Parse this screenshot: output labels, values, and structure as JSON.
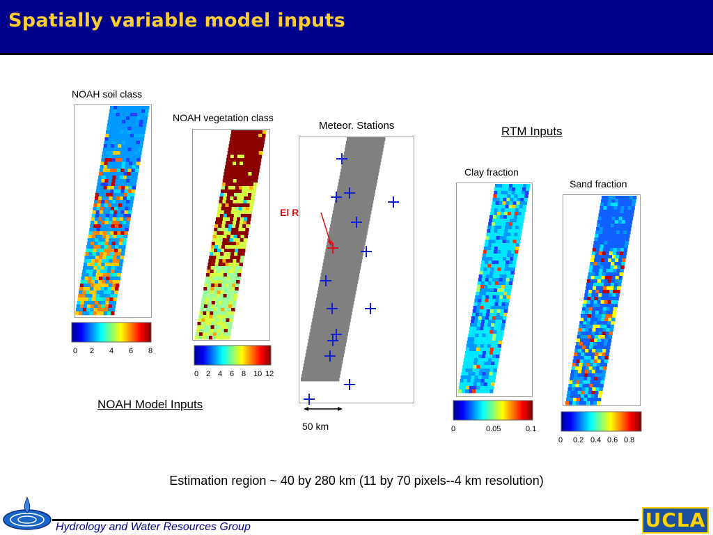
{
  "title": "Spatially variable model inputs",
  "panels": {
    "soil": {
      "label": "NOAH soil class",
      "ticks": [
        "0",
        "2",
        "4",
        "6",
        "8"
      ]
    },
    "veg": {
      "label": "NOAH vegetation class",
      "ticks": [
        "0",
        "2",
        "4",
        "6",
        "8",
        "10",
        "12"
      ]
    },
    "stations": {
      "label": "Meteor. Stations",
      "station_label": "El Reno",
      "scale_label": "50 km"
    },
    "clay": {
      "label": "Clay fraction",
      "ticks": [
        "0",
        "0.05",
        "0.1"
      ]
    },
    "sand": {
      "label": "Sand fraction",
      "ticks": [
        "0",
        "0.2",
        "0.4",
        "0.6",
        "0.8"
      ]
    }
  },
  "groups": {
    "noah": "NOAH Model Inputs",
    "rtm": "RTM Inputs"
  },
  "estimation_text": "Estimation region ~ 40 by 280 km (11 by 70 pixels--4 km resolution)",
  "footer": {
    "group_name": "Hydrology and Water Resources Group",
    "logo_text": "UCLA"
  },
  "colors": {
    "header_bg": "#00008b",
    "title_text": "#ffcc33",
    "station_marker": "#1020d0",
    "highlight_marker": "#e01010"
  },
  "icons": {
    "left_logo": "water-drop-logo-icon",
    "right_logo": "ucla-logo-icon"
  }
}
